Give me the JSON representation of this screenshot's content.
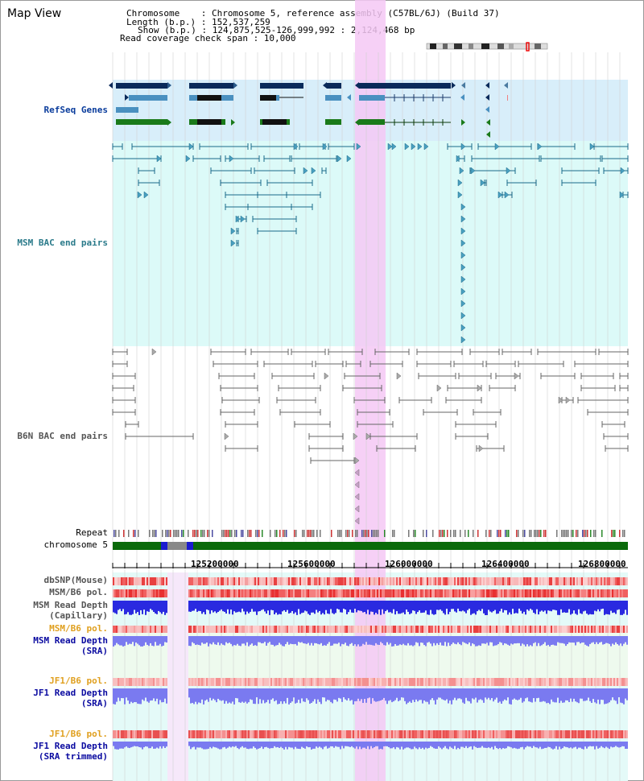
{
  "view": {
    "title": "Map View",
    "chromosome_label": "Chromosome    : Chromosome 5, reference assembly (C57BL/6J) (Build 37)",
    "length_label": "Length (b.p.) : 152,537,259",
    "show_label": "Show (b.p.) : 124,875,525-126,999,992 : 2,124,468 bp",
    "coverage_label": "Read coverage check span : 10,000"
  },
  "tracks": {
    "refseq": "RefSeq Genes",
    "msm_bac": "MSM BAC end pairs",
    "b6n_bac": "B6N BAC end pairs",
    "repeat": "Repeat",
    "chromosome": "chromosome 5",
    "dbsnp": "dbSNP(Mouse)",
    "msm_b6_pol_1": "MSM/B6 pol.",
    "msm_read_depth_cap_1": "MSM Read Depth",
    "msm_read_depth_cap_2": "(Capillary)",
    "msm_b6_pol_2": "MSM/B6 pol.",
    "msm_read_depth_sra_1": "MSM Read Depth",
    "msm_read_depth_sra_2": "(SRA)",
    "jf1_b6_pol_1": "JF1/B6 pol.",
    "jf1_read_depth_1": "JF1 Read Depth",
    "jf1_read_depth_2": "(SRA)",
    "jf1_b6_pol_2": "JF1/B6 pol.",
    "jf1_read_depth_trim_1": "JF1 Read Depth",
    "jf1_read_depth_trim_2": "(SRA trimmed)"
  },
  "axis": {
    "ticks": [
      "125200000",
      "125600000",
      "126000000",
      "126400000",
      "126800000"
    ]
  },
  "colors": {
    "highlight": "#f4c8f4",
    "refseq_bg": "#d8eefa",
    "msm_bg": "#dcfaf8",
    "navy_gene": "#0a2a5a",
    "mid_gene": "#4a90c0",
    "green_gene": "#1a7a1a",
    "chrom_green": "#0a6a0a"
  }
}
